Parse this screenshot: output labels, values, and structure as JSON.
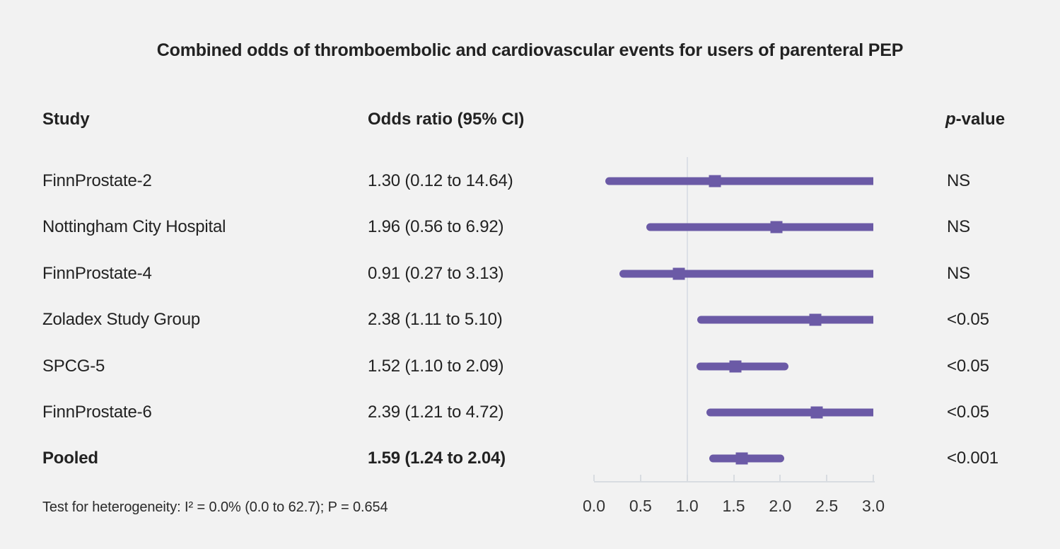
{
  "title": "Combined odds of thromboembolic and cardiovascular events for users of parenteral PEP",
  "columns": {
    "study": "Study",
    "or": "Odds ratio (95% CI)",
    "p_italic": "p",
    "p_rest": "-value"
  },
  "footer": {
    "text": "Test for heterogeneity: I² = 0.0% (0.0 to 62.7); P = 0.654"
  },
  "colors": {
    "accent": "#6B5AA6",
    "background": "#F2F2F2",
    "axis": "#D8DCE1",
    "gridline": "#DCE0E6",
    "text": "#222222"
  },
  "chart_data": {
    "type": "forest",
    "title": "Combined odds of thromboembolic and cardiovascular events for users of parenteral PEP",
    "xlabel": "Odds ratio",
    "xlim": [
      0,
      3
    ],
    "xticks": [
      0,
      0.5,
      1,
      1.5,
      2,
      2.5,
      3
    ],
    "xtick_labels": [
      "0.0",
      "0.5",
      "1.0",
      "1.5",
      "2.0",
      "2.5",
      "3.0"
    ],
    "reference_line": 1.0,
    "grid": false,
    "rows": [
      {
        "study": "FinnProstate-2",
        "or": 1.3,
        "ci_low": 0.12,
        "ci_high": 14.64,
        "or_label": "1.30 (0.12 to 14.64)",
        "p": "NS",
        "bold": false
      },
      {
        "study": "Nottingham City Hospital",
        "or": 1.96,
        "ci_low": 0.56,
        "ci_high": 6.92,
        "or_label": "1.96 (0.56 to 6.92)",
        "p": "NS",
        "bold": false
      },
      {
        "study": "FinnProstate-4",
        "or": 0.91,
        "ci_low": 0.27,
        "ci_high": 3.13,
        "or_label": "0.91 (0.27 to 3.13)",
        "p": "NS",
        "bold": false
      },
      {
        "study": "Zoladex Study Group",
        "or": 2.38,
        "ci_low": 1.11,
        "ci_high": 5.1,
        "or_label": "2.38 (1.11 to 5.10)",
        "p": "<0.05",
        "bold": false
      },
      {
        "study": "SPCG-5",
        "or": 1.52,
        "ci_low": 1.1,
        "ci_high": 2.09,
        "or_label": "1.52 (1.10 to 2.09)",
        "p": "<0.05",
        "bold": false
      },
      {
        "study": "FinnProstate-6",
        "or": 2.39,
        "ci_low": 1.21,
        "ci_high": 4.72,
        "or_label": "2.39 (1.21 to 4.72)",
        "p": "<0.05",
        "bold": false
      },
      {
        "study": "Pooled",
        "or": 1.59,
        "ci_low": 1.24,
        "ci_high": 2.04,
        "or_label": "1.59 (1.24 to 2.04)",
        "p": "<0.001",
        "bold": true
      }
    ]
  }
}
